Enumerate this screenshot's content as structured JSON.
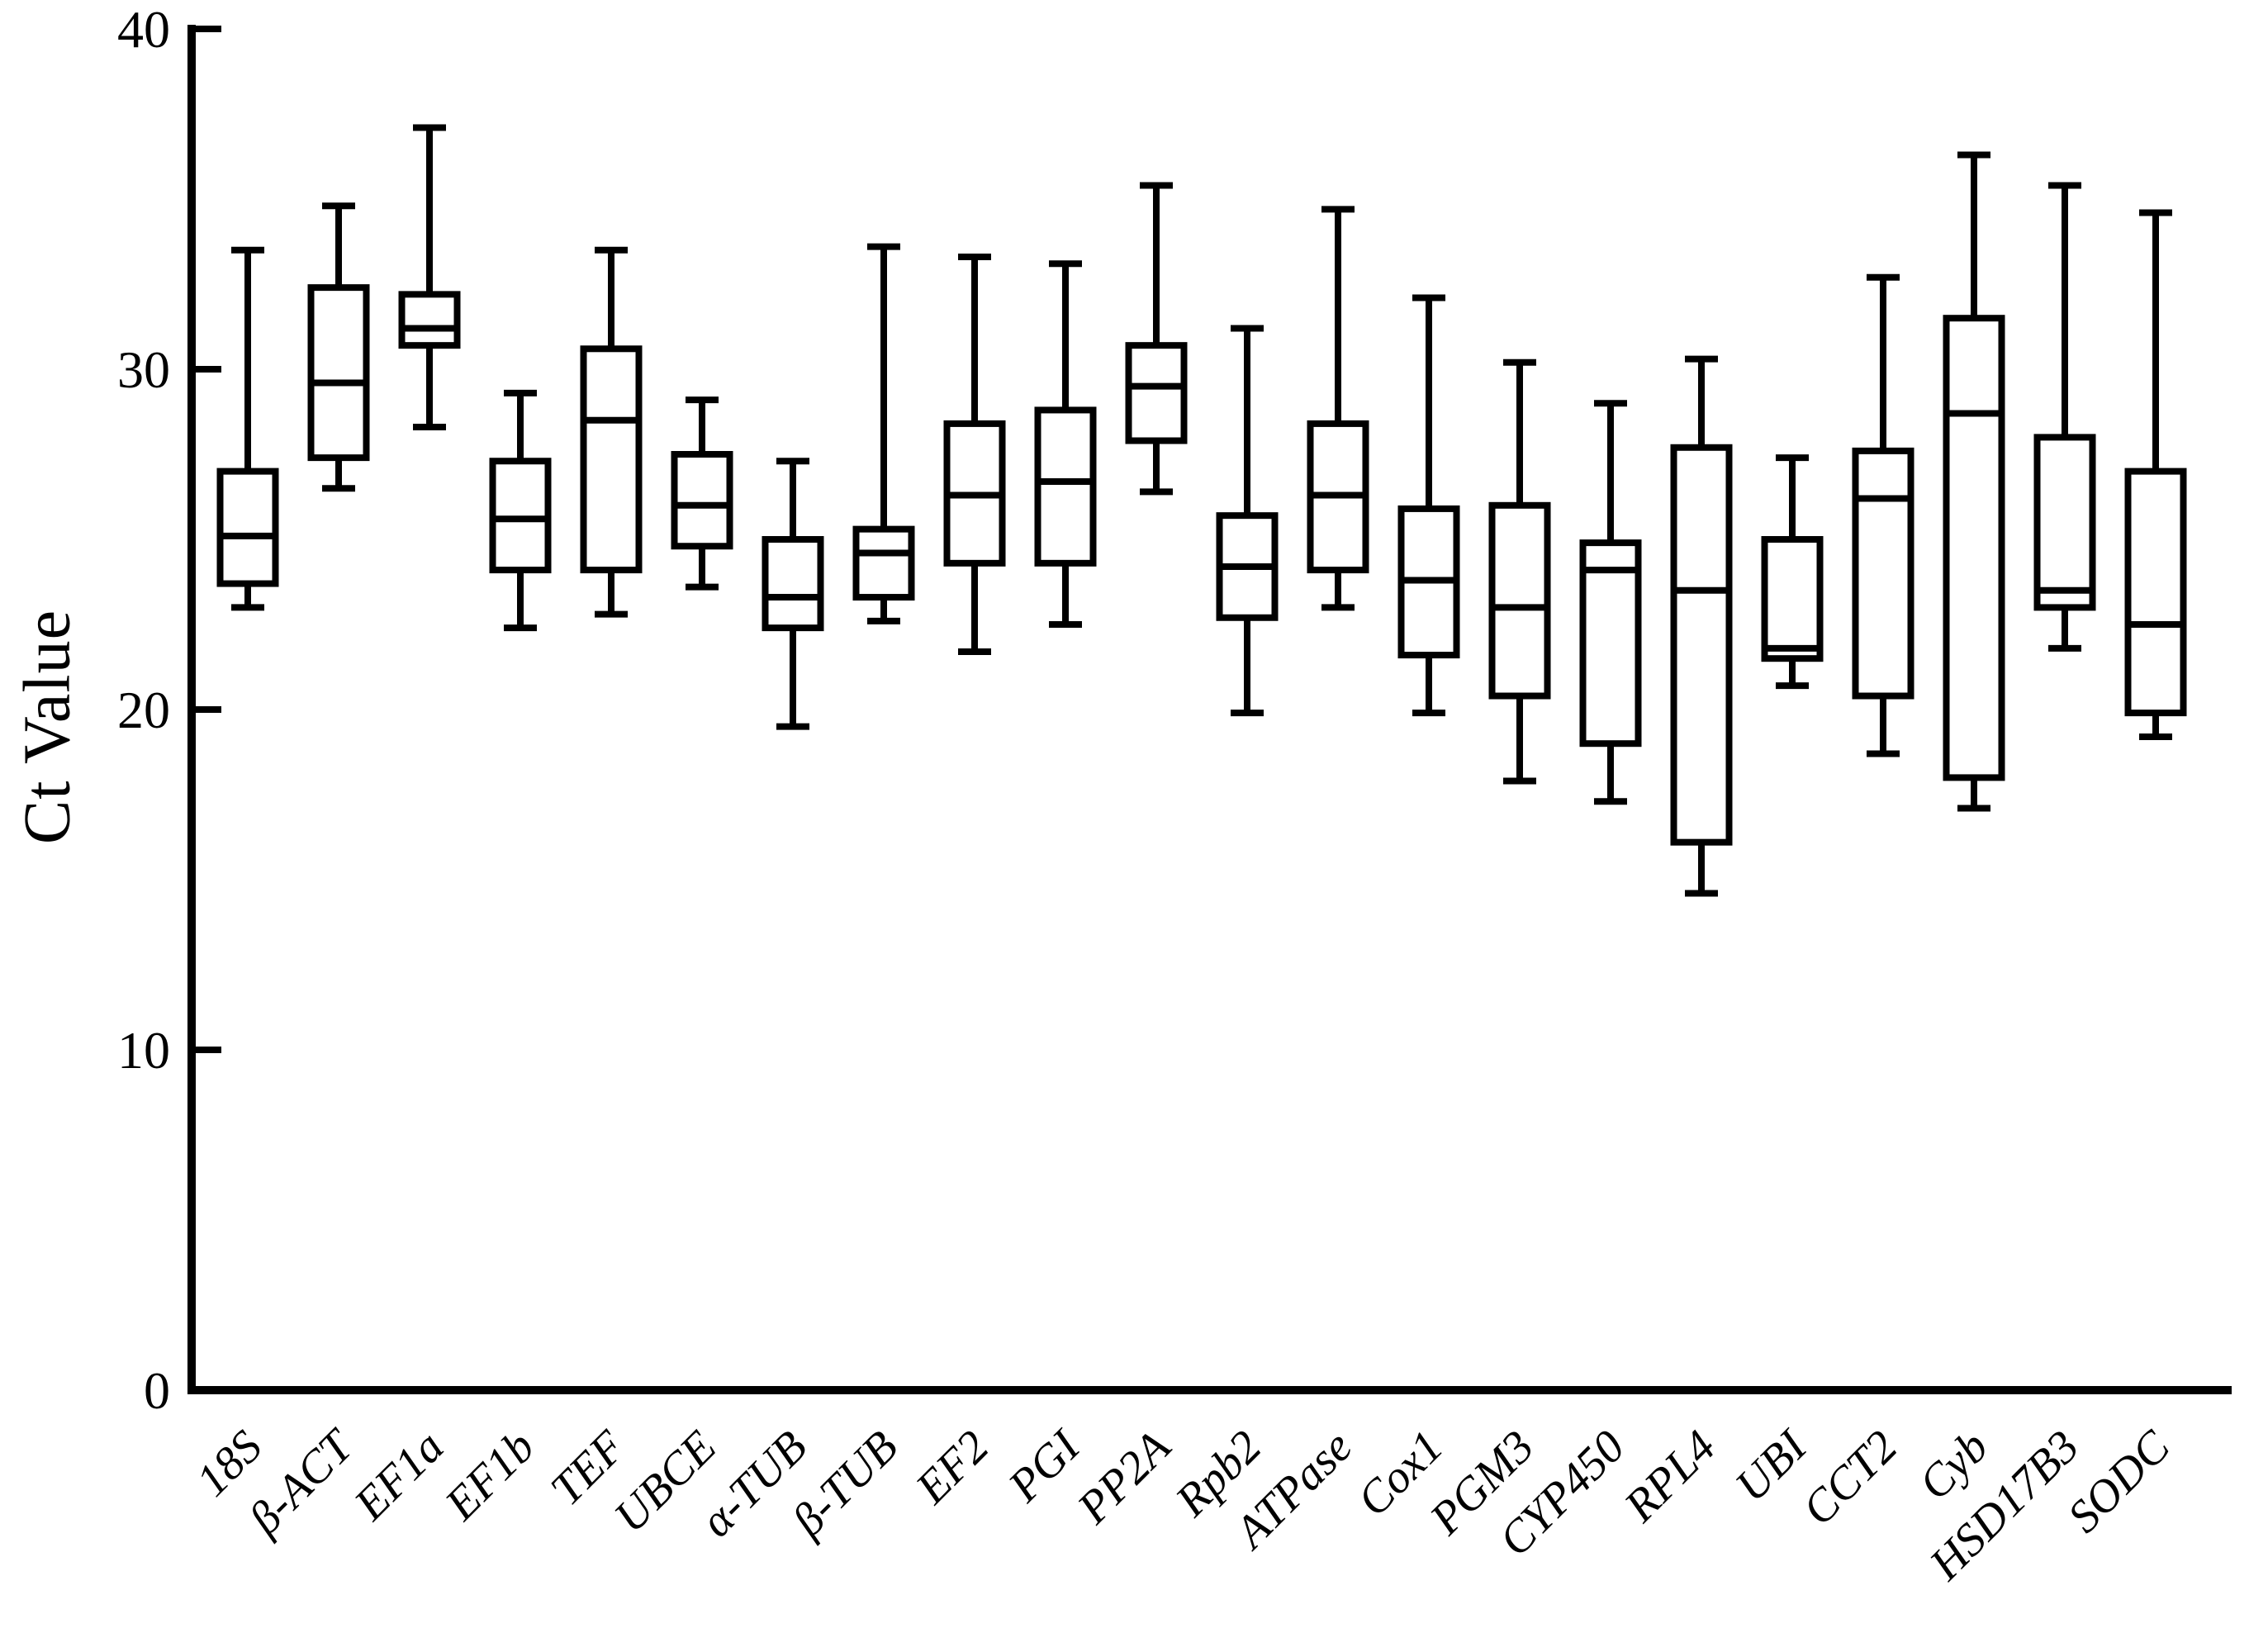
{
  "figure": {
    "background_color": "#ffffff",
    "stroke_color": "#000000"
  },
  "chart_data": {
    "type": "boxplot",
    "title": "",
    "xlabel": "",
    "ylabel": "Ct Value",
    "ylim": [
      0,
      40
    ],
    "yticks": [
      0,
      10,
      20,
      30,
      40
    ],
    "grid": false,
    "legend_position": "none",
    "categories": [
      "18S",
      "β-ACT",
      "EF1a",
      "EF1b",
      "TEF",
      "UBCE",
      "α-TUB",
      "β-TUB",
      "EF2",
      "PGI",
      "PP2A",
      "Rpb2",
      "ATPase",
      "Cox1",
      "PGM3",
      "CYP450",
      "RPL4",
      "UBI",
      "CCT2",
      "Cyb",
      "HSD17B3",
      "SODC"
    ],
    "series": [
      {
        "name": "18S",
        "min": 23.0,
        "q1": 23.7,
        "median": 25.1,
        "q3": 27.0,
        "max": 33.5
      },
      {
        "name": "β-ACT",
        "min": 26.5,
        "q1": 27.4,
        "median": 29.6,
        "q3": 32.4,
        "max": 34.8
      },
      {
        "name": "EF1a",
        "min": 28.3,
        "q1": 30.7,
        "median": 31.2,
        "q3": 32.2,
        "max": 37.1
      },
      {
        "name": "EF1b",
        "min": 22.4,
        "q1": 24.1,
        "median": 25.6,
        "q3": 27.3,
        "max": 29.3
      },
      {
        "name": "TEF",
        "min": 22.8,
        "q1": 24.1,
        "median": 28.5,
        "q3": 30.6,
        "max": 33.5
      },
      {
        "name": "UBCE",
        "min": 23.6,
        "q1": 24.8,
        "median": 26.0,
        "q3": 27.5,
        "max": 29.1
      },
      {
        "name": "α-TUB",
        "min": 19.5,
        "q1": 22.4,
        "median": 23.3,
        "q3": 25.0,
        "max": 27.3
      },
      {
        "name": "β-TUB",
        "min": 22.6,
        "q1": 23.3,
        "median": 24.6,
        "q3": 25.3,
        "max": 33.6
      },
      {
        "name": "EF2",
        "min": 21.7,
        "q1": 24.3,
        "median": 26.3,
        "q3": 28.4,
        "max": 33.3
      },
      {
        "name": "PGI",
        "min": 22.5,
        "q1": 24.3,
        "median": 26.7,
        "q3": 28.8,
        "max": 33.1
      },
      {
        "name": "PP2A",
        "min": 26.4,
        "q1": 27.9,
        "median": 29.5,
        "q3": 30.7,
        "max": 35.4
      },
      {
        "name": "Rpb2",
        "min": 19.9,
        "q1": 22.7,
        "median": 24.2,
        "q3": 25.7,
        "max": 31.2
      },
      {
        "name": "ATPase",
        "min": 23.0,
        "q1": 24.1,
        "median": 26.3,
        "q3": 28.4,
        "max": 34.7
      },
      {
        "name": "Cox1",
        "min": 19.9,
        "q1": 21.6,
        "median": 23.8,
        "q3": 25.9,
        "max": 32.1
      },
      {
        "name": "PGM3",
        "min": 17.9,
        "q1": 20.4,
        "median": 23.0,
        "q3": 26.0,
        "max": 30.2
      },
      {
        "name": "CYP450",
        "min": 17.3,
        "q1": 19.0,
        "median": 24.1,
        "q3": 24.9,
        "max": 29.0
      },
      {
        "name": "RPL4",
        "min": 14.6,
        "q1": 16.1,
        "median": 23.5,
        "q3": 27.7,
        "max": 30.3
      },
      {
        "name": "UBI",
        "min": 20.7,
        "q1": 21.5,
        "median": 21.8,
        "q3": 25.0,
        "max": 27.4
      },
      {
        "name": "CCT2",
        "min": 18.7,
        "q1": 20.4,
        "median": 26.2,
        "q3": 27.6,
        "max": 32.7
      },
      {
        "name": "Cyb",
        "min": 17.1,
        "q1": 18.0,
        "median": 28.7,
        "q3": 31.5,
        "max": 36.3
      },
      {
        "name": "HSD17B3",
        "min": 21.8,
        "q1": 23.0,
        "median": 23.5,
        "q3": 28.0,
        "max": 35.4
      },
      {
        "name": "SODC",
        "min": 19.2,
        "q1": 19.9,
        "median": 22.5,
        "q3": 27.0,
        "max": 34.6
      }
    ]
  }
}
